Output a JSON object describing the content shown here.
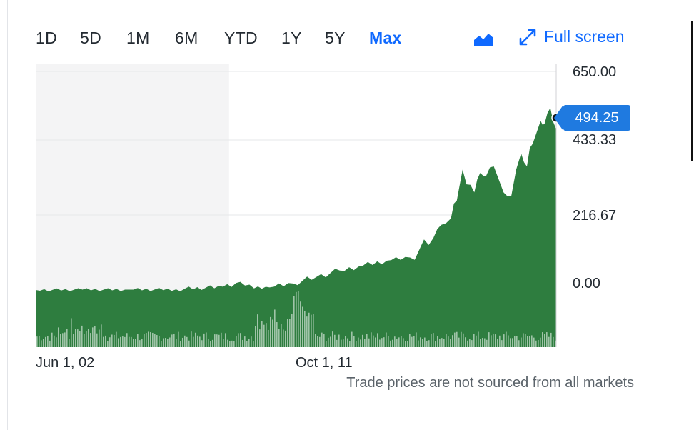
{
  "toolbar": {
    "ranges": [
      {
        "label": "1D",
        "active": false
      },
      {
        "label": "5D",
        "active": false
      },
      {
        "label": "1M",
        "active": false
      },
      {
        "label": "6M",
        "active": false
      },
      {
        "label": "YTD",
        "active": false
      },
      {
        "label": "1Y",
        "active": false
      },
      {
        "label": "5Y",
        "active": false
      },
      {
        "label": "Max",
        "active": true
      }
    ],
    "chart_type_icon": "mountain-chart-icon",
    "fullscreen_icon": "expand-arrows-icon",
    "fullscreen_label": "Full screen"
  },
  "current_price": "494.25",
  "disclaimer": "Trade prices are not sourced from all markets",
  "colors": {
    "accent": "#0f69ff",
    "area_fill": "#2e7d3f",
    "volume_bars": "#2e7d3f",
    "price_tag": "#1f7ae0",
    "shaded_region": "#f4f4f5"
  },
  "chart_data": {
    "type": "area",
    "title": "",
    "xlabel": "",
    "ylabel": "",
    "y_ticks": [
      "650.00",
      "433.33",
      "216.67",
      "0.00"
    ],
    "ylim": [
      -40,
      650
    ],
    "x_ticks": [
      "Jun 1, 02",
      "Oct 1, 11"
    ],
    "x": [
      "2002-06",
      "2004-06",
      "2006-06",
      "2008-06",
      "2010-06",
      "2011-03",
      "2011-10",
      "2012-06",
      "2013-06",
      "2014-06",
      "2015-06",
      "2016-06",
      "2017-06",
      "2018-06",
      "2019-06",
      "2019-10",
      "2020-03",
      "2020-06",
      "2020-09",
      "2021-03",
      "2021-06",
      "2021-09",
      "2022-01",
      "2022-06",
      "2022-10",
      "2023-03",
      "2023-06",
      "2023-09",
      "2024-01",
      "2024-03",
      "2024-06",
      "2024-09"
    ],
    "series": [
      {
        "values": [
          0,
          1,
          1,
          2,
          10,
          25,
          5,
          8,
          20,
          40,
          60,
          75,
          90,
          100,
          160,
          200,
          220,
          275,
          370,
          300,
          360,
          350,
          380,
          300,
          290,
          420,
          380,
          450,
          520,
          510,
          560,
          494.25
        ]
      }
    ],
    "volume_relative": true,
    "last_value_label": "494.25",
    "shaded_period": [
      "2002-06",
      "2011-10"
    ],
    "grid": true,
    "legend": "none"
  }
}
